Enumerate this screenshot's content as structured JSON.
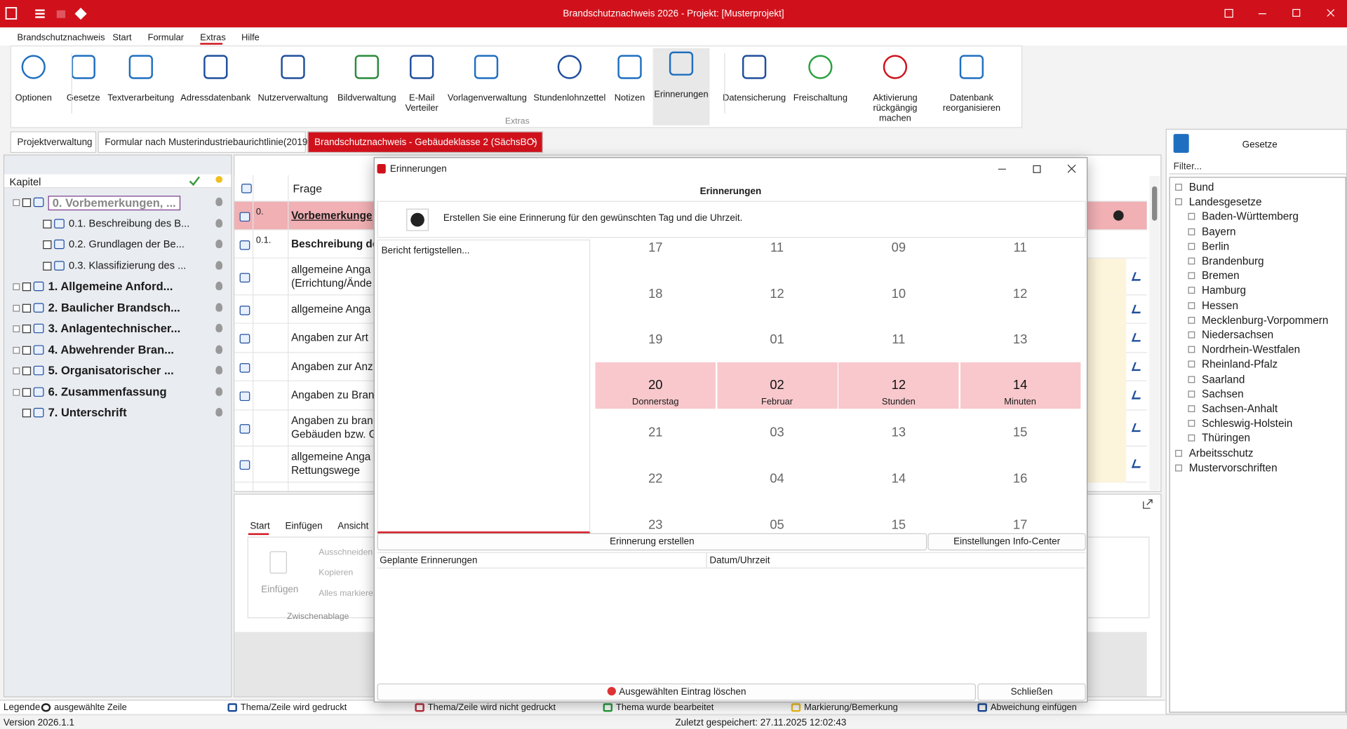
{
  "titlebar": {
    "title": "Brandschutznachweis 2026 - Projekt: [Musterprojekt]"
  },
  "menu": [
    "Brandschutznachweis",
    "Start",
    "Formular",
    "Extras",
    "Hilfe"
  ],
  "ribbon": {
    "buttons": [
      "Optionen",
      "Gesetze",
      "Textverarbeitung",
      "Adressdatenbank",
      "Nutzerverwaltung",
      "Bildverwaltung",
      "E-Mail Verteiler",
      "Vorlagenverwaltung",
      "Stundenlohnzettel",
      "Notizen",
      "Erinnerungen",
      "Datensicherung",
      "Freischaltung",
      "Aktivierung rückgängig machen",
      "Datenbank reorganisieren"
    ],
    "group": "Extras"
  },
  "tabs": [
    "Projektverwaltung",
    "Formular nach Musterindustriebaurichtlinie(2019)",
    "Brandschutznachweis - Gebäudeklasse 2 (SächsBO)"
  ],
  "chapters": {
    "header": "Kapitel",
    "items": [
      "0. Vorbemerkungen, ...",
      "0.1. Beschreibung des B...",
      "0.2. Grundlagen der Be...",
      "0.3. Klassifizierung des ...",
      "1. Allgemeine Anford...",
      "2. Baulicher Brandsch...",
      "3. Anlagentechnischer...",
      "4. Abwehrender Bran...",
      "5. Organisatorischer ...",
      "6. Zusammenfassung",
      "7. Unterschrift"
    ]
  },
  "questions": {
    "header": "Frage",
    "rows": [
      {
        "num": "0.",
        "lines": [
          "Vorbemerkunge"
        ]
      },
      {
        "num": "0.1.",
        "lines": [
          "Beschreibung de"
        ]
      },
      {
        "lines": [
          "allgemeine Anga",
          "(Errichtung/Ände"
        ]
      },
      {
        "lines": [
          "allgemeine Anga"
        ]
      },
      {
        "lines": [
          "Angaben zur Art"
        ]
      },
      {
        "lines": [
          "Angaben zur Anz"
        ]
      },
      {
        "lines": [
          "Angaben zu Bran"
        ]
      },
      {
        "lines": [
          "Angaben zu bran",
          "Gebäuden bzw. G"
        ]
      },
      {
        "lines": [
          "allgemeine Anga",
          "Rettungswege"
        ]
      }
    ]
  },
  "editor": {
    "tabs": [
      "Start",
      "Einfügen",
      "Ansicht"
    ],
    "paste": "Einfügen",
    "actions": [
      "Ausschneiden",
      "Kopieren",
      "Alles markieren"
    ],
    "group": "Zwischenablage"
  },
  "dialog": {
    "title": "Erinnerungen",
    "heading": "Erinnerungen",
    "message": "Erstellen Sie eine Erinnerung für den gewünschten Tag und die Uhrzeit.",
    "text": "Bericht fertigstellen...",
    "picker": [
      {
        "values": [
          "17",
          "18",
          "19",
          "20",
          "21",
          "22",
          "23"
        ],
        "label": "Donnerstag"
      },
      {
        "values": [
          "11",
          "12",
          "01",
          "02",
          "03",
          "04",
          "05"
        ],
        "label": "Februar"
      },
      {
        "values": [
          "09",
          "10",
          "11",
          "12",
          "13",
          "14",
          "15"
        ],
        "label": "Stunden"
      },
      {
        "values": [
          "11",
          "12",
          "13",
          "14",
          "15",
          "16",
          "17"
        ],
        "label": "Minuten"
      }
    ],
    "create": "Erinnerung erstellen",
    "settings": "Einstellungen Info-Center",
    "columns": [
      "Geplante Erinnerungen",
      "Datum/Uhrzeit"
    ],
    "delete": "Ausgewählten Eintrag löschen",
    "close": "Schließen"
  },
  "laws": {
    "title": "Gesetze",
    "filter": "Filter...",
    "tree": [
      {
        "label": "Bund"
      },
      {
        "label": "Landesgesetze",
        "children": [
          "Baden-Württemberg",
          "Bayern",
          "Berlin",
          "Brandenburg",
          "Bremen",
          "Hamburg",
          "Hessen",
          "Mecklenburg-Vorpommern",
          "Niedersachsen",
          "Nordrhein-Westfalen",
          "Rheinland-Pfalz",
          "Saarland",
          "Sachsen",
          "Sachsen-Anhalt",
          "Schleswig-Holstein",
          "Thüringen"
        ]
      },
      {
        "label": "Arbeitsschutz"
      },
      {
        "label": "Mustervorschriften"
      }
    ]
  },
  "legend": {
    "title": "Legende",
    "items": [
      "ausgewählte Zeile",
      "Thema/Zeile wird gedruckt",
      "Thema/Zeile wird nicht gedruckt",
      "Thema wurde bearbeitet",
      "Markierung/Bemerkung",
      "Abweichung einfügen"
    ]
  },
  "status": {
    "version": "Version 2026.1.1",
    "saved": "Zuletzt gespeichert: 27.11.2025 12:02:43"
  }
}
